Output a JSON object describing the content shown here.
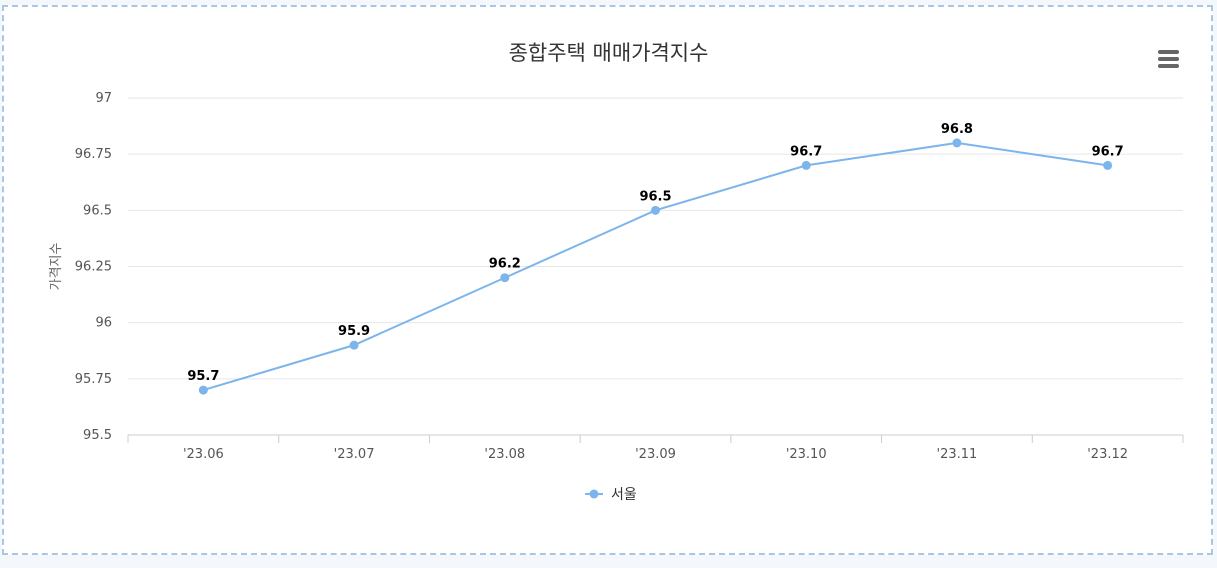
{
  "chart_data": {
    "type": "line",
    "title": "종합주택 매매가격지수",
    "xlabel": "",
    "ylabel": "가격지수",
    "categories": [
      "'23.06",
      "'23.07",
      "'23.08",
      "'23.09",
      "'23.10",
      "'23.11",
      "'23.12"
    ],
    "series": [
      {
        "name": "서울",
        "values": [
          95.7,
          95.9,
          96.2,
          96.5,
          96.7,
          96.8,
          96.7
        ],
        "data_labels": [
          "95.7",
          "95.9",
          "96.2",
          "96.5",
          "96.7",
          "96.8",
          "96.7"
        ],
        "color": "#7cb5ec"
      }
    ],
    "ylim": [
      95.5,
      97
    ],
    "yticks": [
      "95.5",
      "95.75",
      "96",
      "96.25",
      "96.5",
      "96.75",
      "97"
    ],
    "grid": true,
    "legend": "bottom-center"
  },
  "colors": {
    "series": "#7cb5ec",
    "grid": "#e6e6e6",
    "axis": "#cccccc",
    "frame_border": "#a9c6e3",
    "menu_icon": "#666666"
  },
  "menu_icon": "hamburger-menu-icon"
}
